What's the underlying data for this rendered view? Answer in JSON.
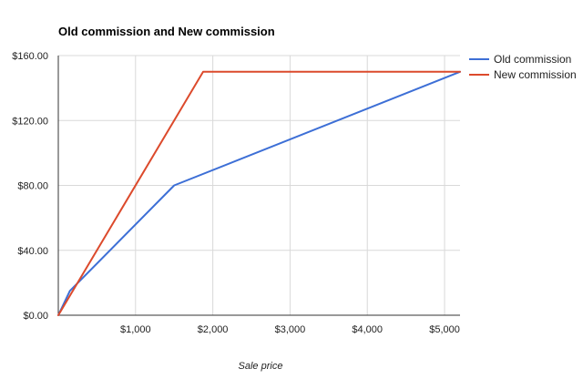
{
  "chart_data": {
    "type": "line",
    "title": "Old commission and New commission",
    "xlabel": "Sale price",
    "ylabel": "",
    "xlim": [
      0,
      5200
    ],
    "ylim": [
      0,
      160
    ],
    "x_ticks": [
      {
        "value": 1000,
        "label": "$1,000"
      },
      {
        "value": 2000,
        "label": "$2,000"
      },
      {
        "value": 3000,
        "label": "$3,000"
      },
      {
        "value": 4000,
        "label": "$4,000"
      },
      {
        "value": 5000,
        "label": "$5,000"
      }
    ],
    "y_ticks": [
      {
        "value": 0,
        "label": "$0.00"
      },
      {
        "value": 40,
        "label": "$40.00"
      },
      {
        "value": 80,
        "label": "$80.00"
      },
      {
        "value": 120,
        "label": "$120.00"
      },
      {
        "value": 160,
        "label": "$160.00"
      }
    ],
    "grid": true,
    "legend_position": "right",
    "series": [
      {
        "name": "Old commission",
        "color": "#3d6fd6",
        "x": [
          0,
          150,
          1500,
          5200
        ],
        "y": [
          0,
          15,
          80,
          150
        ]
      },
      {
        "name": "New commission",
        "color": "#dc4a2c",
        "x": [
          0,
          1875,
          5200
        ],
        "y": [
          0,
          150,
          150
        ]
      }
    ]
  }
}
